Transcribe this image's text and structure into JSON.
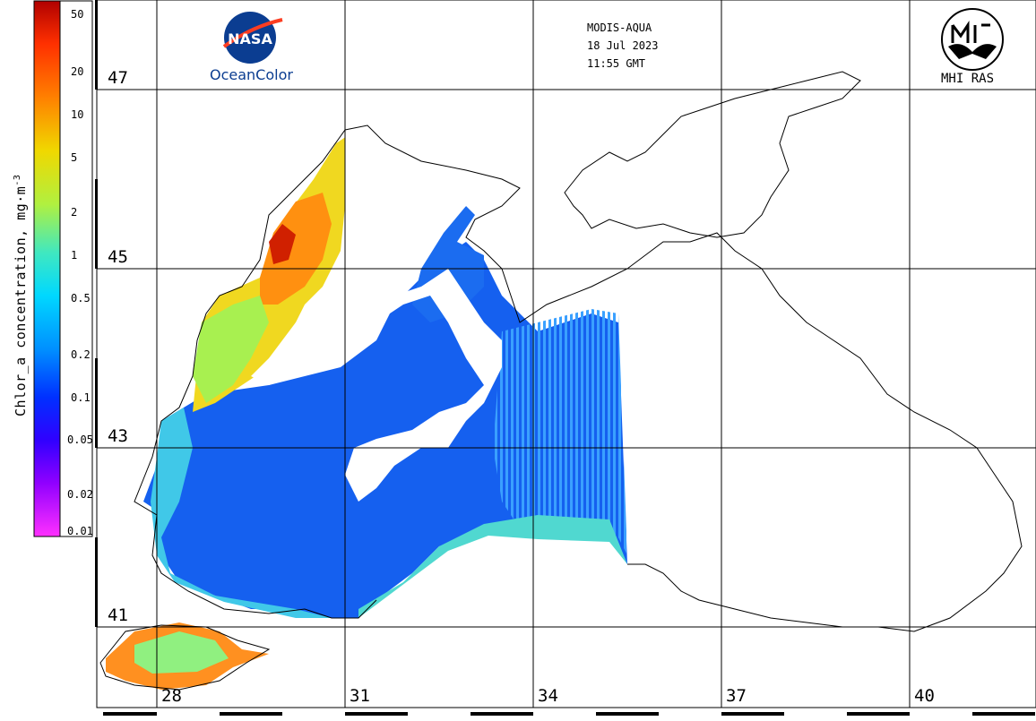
{
  "header": {
    "sensor": "MODIS-AQUA",
    "date": "18 Jul 2023",
    "time": "11:55 GMT"
  },
  "logos": {
    "left_text": "NASA",
    "left_caption": "OceanColor",
    "right_caption": "MHI RAS"
  },
  "colorbar": {
    "title": "Chlor_a concentration, mg·m⁻³",
    "title_main": "Chlor_a concentration, mg·m",
    "title_sup": "-3",
    "ticks": [
      "50",
      "20",
      "10",
      "5",
      "2",
      "1",
      "0.5",
      "0.2",
      "0.1",
      "0.05",
      "0.02",
      "0.01"
    ],
    "colors": [
      "#c00000",
      "#ff4000",
      "#ff9000",
      "#f0d000",
      "#c8f040",
      "#60e8a0",
      "#00e0ff",
      "#10a0ff",
      "#1040ff",
      "#2000ff",
      "#9000ff",
      "#e000ff",
      "#ff40ff"
    ]
  },
  "grid": {
    "latitudes": [
      "47",
      "45",
      "43",
      "41"
    ],
    "longitudes": [
      "28",
      "31",
      "34",
      "37",
      "40"
    ]
  },
  "colors": {
    "grid": "#000000",
    "coast": "#000000",
    "background": "#ffffff"
  }
}
